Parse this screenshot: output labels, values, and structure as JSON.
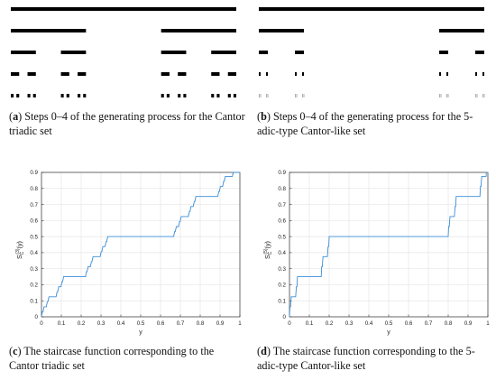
{
  "panels": [
    {
      "id": "a",
      "tag": "a",
      "caption": "Steps 0–4 of the generating process for the Cantor triadic set",
      "cantor": {
        "base": 3,
        "keep": [
          0,
          2
        ],
        "steps": 5,
        "color": "#000000"
      }
    },
    {
      "id": "b",
      "tag": "b",
      "caption": "Steps 0–4 of the generating process for the 5-adic-type Cantor-like set",
      "cantor": {
        "base": 5,
        "keep": [
          0,
          4
        ],
        "steps": 5,
        "color": "#000000",
        "faint_last_step": "#9a9a9a"
      }
    },
    {
      "id": "c",
      "tag": "c",
      "caption": "The staircase function corresponding to the Cantor triadic set"
    },
    {
      "id": "d",
      "tag": "d",
      "caption": "The staircase function corresponding to the 5-adic-type Cantor-like set"
    }
  ],
  "chart_data": [
    {
      "type": "line",
      "panel": "c",
      "function": "staircase",
      "base": 3,
      "keep": [
        0,
        2
      ],
      "level": 6,
      "x_range": [
        0,
        1
      ],
      "ylim": [
        0,
        0.9
      ],
      "xticks": [
        "0",
        "0.1",
        "0.2",
        "0.3",
        "0.4",
        "0.5",
        "0.6",
        "0.7",
        "0.8",
        "0.9",
        "1"
      ],
      "yticks": [
        "0",
        "0.1",
        "0.2",
        "0.3",
        "0.4",
        "0.5",
        "0.6",
        "0.7",
        "0.8",
        "0.9"
      ],
      "xlabel": "y",
      "ylabel": "S_C^{(3)}(y)",
      "grid": true,
      "line_color": "#3b8ed6"
    },
    {
      "type": "line",
      "panel": "d",
      "function": "staircase",
      "base": 5,
      "keep": [
        0,
        4
      ],
      "level": 5,
      "x_range": [
        0,
        1
      ],
      "ylim": [
        0,
        0.9
      ],
      "xticks": [
        "0",
        "0.1",
        "0.2",
        "0.3",
        "0.4",
        "0.5",
        "0.6",
        "0.7",
        "0.8",
        "0.9",
        "1"
      ],
      "yticks": [
        "0",
        "0.1",
        "0.2",
        "0.3",
        "0.4",
        "0.5",
        "0.6",
        "0.7",
        "0.8",
        "0.9"
      ],
      "xlabel": "y",
      "ylabel": "S_C^{(5)}(y)",
      "grid": true,
      "line_color": "#3b8ed6"
    }
  ]
}
